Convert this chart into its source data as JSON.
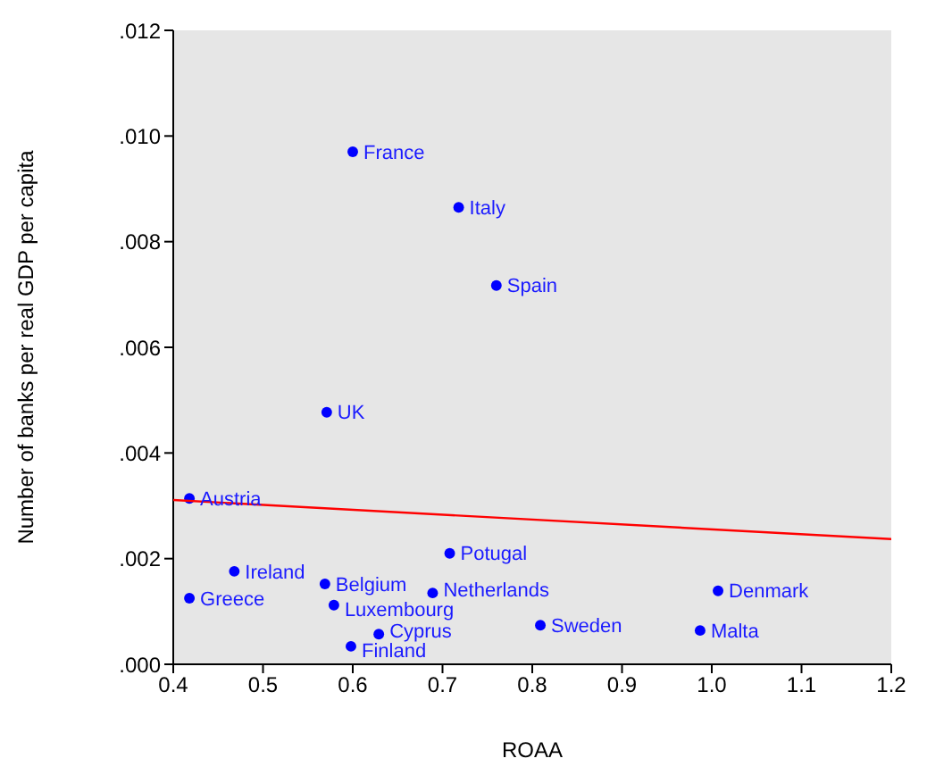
{
  "chart_data": {
    "type": "scatter",
    "xlabel": "ROAA",
    "ylabel": "Number of banks per real GDP per capita",
    "xlim": [
      0.4,
      1.2
    ],
    "ylim": [
      0,
      0.012
    ],
    "xticks": [
      {
        "value": 0.4,
        "label": "0.4"
      },
      {
        "value": 0.5,
        "label": "0.5"
      },
      {
        "value": 0.6,
        "label": "0.6"
      },
      {
        "value": 0.7,
        "label": "0.7"
      },
      {
        "value": 0.8,
        "label": "0.8"
      },
      {
        "value": 0.9,
        "label": "0.9"
      },
      {
        "value": 1.0,
        "label": "1.0"
      },
      {
        "value": 1.1,
        "label": "1.1"
      },
      {
        "value": 1.2,
        "label": "1.2"
      }
    ],
    "yticks": [
      {
        "value": 0,
        "label": ".000"
      },
      {
        "value": 0.002,
        "label": ".002"
      },
      {
        "value": 0.004,
        "label": ".004"
      },
      {
        "value": 0.006,
        "label": ".006"
      },
      {
        "value": 0.008,
        "label": ".008"
      },
      {
        "value": 0.01,
        "label": ".010"
      },
      {
        "value": 0.012,
        "label": ".012"
      }
    ],
    "grid": false,
    "marker": "circle",
    "series": [
      {
        "color": "#0000ff",
        "x": [
          0.6,
          0.718,
          0.76,
          0.571,
          0.418,
          0.468,
          0.418,
          0.569,
          0.579,
          0.689,
          0.708,
          0.629,
          0.598,
          0.809,
          1.007,
          0.987
        ],
        "values": [
          0.0097,
          0.00865,
          0.00717,
          0.00477,
          0.00314,
          0.00176,
          0.00125,
          0.00152,
          0.00112,
          0.00135,
          0.0021,
          0.00057,
          0.00034,
          0.00074,
          0.00139,
          0.00064
        ]
      },
      {
        "type": "line",
        "marker": "none",
        "color": "#ff0000",
        "x": [
          0.4,
          1.2
        ],
        "values": [
          0.00311,
          0.00237
        ]
      }
    ],
    "annotations": [
      {
        "text": "France",
        "x": 0.6,
        "y": 0.0097
      },
      {
        "text": "Italy",
        "x": 0.718,
        "y": 0.00865
      },
      {
        "text": "Spain",
        "x": 0.76,
        "y": 0.00717
      },
      {
        "text": "UK",
        "x": 0.571,
        "y": 0.00477
      },
      {
        "text": "Austria",
        "x": 0.418,
        "y": 0.00314
      },
      {
        "text": "Ireland",
        "x": 0.468,
        "y": 0.00176
      },
      {
        "text": "Greece",
        "x": 0.418,
        "y": 0.00125
      },
      {
        "text": "Belgium",
        "x": 0.569,
        "y": 0.00152
      },
      {
        "text": "Luxembourg",
        "x": 0.579,
        "y": 0.00112
      },
      {
        "text": "Netherlands",
        "x": 0.689,
        "y": 0.00135
      },
      {
        "text": "Potugal",
        "x": 0.708,
        "y": 0.0021
      },
      {
        "text": "Cyprus",
        "x": 0.629,
        "y": 0.00057
      },
      {
        "text": "Finland",
        "x": 0.598,
        "y": 0.00034
      },
      {
        "text": "Sweden",
        "x": 0.809,
        "y": 0.00074
      },
      {
        "text": "Denmark",
        "x": 1.007,
        "y": 0.00139
      },
      {
        "text": "Malta",
        "x": 0.987,
        "y": 0.00064
      }
    ]
  }
}
